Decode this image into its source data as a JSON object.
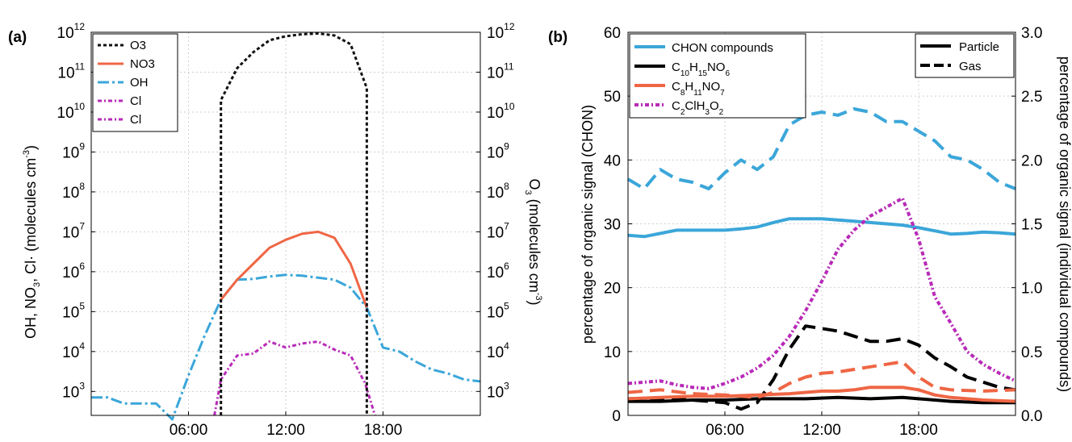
{
  "chart_data": [
    {
      "panel_label": "(a)",
      "type": "line",
      "yscale": "log",
      "ylim_exponents": [
        2.4,
        12
      ],
      "xlim_hours": [
        0,
        24
      ],
      "xticks": [
        "06:00",
        "12:00",
        "18:00"
      ],
      "ytick_exponents": [
        3,
        4,
        5,
        6,
        7,
        8,
        9,
        10,
        11,
        12
      ],
      "ylabel_left": {
        "text": "OH, NO",
        "sub": "3",
        "tail": ", Cl· (molecules cm",
        "sup": "-3",
        "close": ")"
      },
      "ylabel_right": {
        "text": "O",
        "sub": "3",
        "tail": " (molecules cm",
        "sup": "-3",
        "close": ")"
      },
      "grid": true,
      "legend_position": "top-left",
      "legend": [
        "O3",
        "NO3",
        "OH",
        "Cl",
        "Cl"
      ],
      "series": [
        {
          "name": "O3",
          "color": "#111111",
          "dash": "4 3",
          "x": [
            8,
            8,
            9,
            10,
            11,
            12,
            13,
            14,
            15,
            16,
            17,
            17
          ],
          "y_exponent": [
            2.4,
            10.3,
            11.1,
            11.5,
            11.8,
            11.9,
            11.95,
            11.97,
            11.92,
            11.7,
            10.6,
            2.4
          ]
        },
        {
          "name": "NO3",
          "color": "#ef6645",
          "dash": "",
          "x": [
            8,
            9,
            10,
            11,
            12,
            13,
            14,
            15,
            16,
            17
          ],
          "y_exponent": [
            5.3,
            5.8,
            6.2,
            6.6,
            6.8,
            6.95,
            7.0,
            6.85,
            6.2,
            5.1
          ]
        },
        {
          "name": "OH",
          "color": "#3ba6d9",
          "dash": "14 4 3 4",
          "x": [
            0,
            1,
            2,
            3,
            4,
            5,
            6,
            7,
            8,
            9,
            10,
            11,
            12,
            13,
            14,
            15,
            16,
            17,
            18,
            19,
            20,
            21,
            22,
            23,
            24
          ],
          "y_exponent": [
            2.85,
            2.85,
            2.7,
            2.7,
            2.7,
            2.3,
            3.4,
            4.4,
            5.3,
            5.8,
            5.82,
            5.88,
            5.92,
            5.9,
            5.85,
            5.8,
            5.6,
            5.1,
            4.1,
            4.0,
            3.75,
            3.55,
            3.45,
            3.3,
            3.25
          ]
        },
        {
          "name": "Cl",
          "color": "#b82ab8",
          "dash": "5 3 2 3",
          "x": [
            7.6,
            8,
            9,
            10,
            11,
            12,
            13,
            14,
            15,
            16,
            16.9,
            17.5
          ],
          "y_exponent": [
            2.4,
            3.3,
            3.9,
            3.95,
            4.25,
            4.1,
            4.2,
            4.25,
            4.05,
            3.9,
            3.2,
            2.4
          ]
        }
      ]
    },
    {
      "panel_label": "(b)",
      "type": "line",
      "xlim_hours": [
        0,
        24
      ],
      "xticks": [
        "06:00",
        "12:00",
        "18:00"
      ],
      "ylim_left": [
        0,
        60
      ],
      "yticks_left": [
        "0",
        "10",
        "20",
        "30",
        "40",
        "50",
        "60"
      ],
      "ylim_right": [
        0,
        3
      ],
      "yticks_right": [
        "0.0",
        "0.5",
        "1.0",
        "1.5",
        "2.0",
        "2.5",
        "3.0"
      ],
      "ylabel_left": "percentage of organic signal (CHON)",
      "ylabel_right": "percentage of organic signal (individual compounds)",
      "grid": true,
      "legend_compounds": [
        {
          "label": "CHON compounds",
          "color": "#3ba6d9",
          "parts": [
            {
              "t": "CHON compounds"
            }
          ]
        },
        {
          "label": "C10H15NO6",
          "color": "#000000",
          "parts": [
            {
              "t": "C"
            },
            {
              "t": "10",
              "sub": true
            },
            {
              "t": "H"
            },
            {
              "t": "15",
              "sub": true
            },
            {
              "t": "NO"
            },
            {
              "t": "6",
              "sub": true
            }
          ]
        },
        {
          "label": "C8H11NO7",
          "color": "#ef6645",
          "parts": [
            {
              "t": "C"
            },
            {
              "t": "8",
              "sub": true
            },
            {
              "t": "H"
            },
            {
              "t": "11",
              "sub": true
            },
            {
              "t": "NO"
            },
            {
              "t": "7",
              "sub": true
            }
          ]
        },
        {
          "label": "C2ClH3O2",
          "color": "#b82ab8",
          "parts": [
            {
              "t": "C"
            },
            {
              "t": "2",
              "sub": true
            },
            {
              "t": "ClH"
            },
            {
              "t": "3",
              "sub": true
            },
            {
              "t": "O"
            },
            {
              "t": "2",
              "sub": true
            }
          ]
        }
      ],
      "legend_phase": [
        "Particle",
        "Gas"
      ],
      "series": [
        {
          "name": "CHON compounds",
          "phase": "Particle",
          "axis": "left",
          "color": "#3ba6d9",
          "dash": "",
          "x": [
            0,
            1,
            2,
            3,
            4,
            5,
            6,
            7,
            8,
            9,
            10,
            11,
            12,
            13,
            14,
            15,
            16,
            17,
            18,
            19,
            20,
            21,
            22,
            23,
            24
          ],
          "y": [
            28.2,
            28,
            28.5,
            29,
            29,
            29,
            29,
            29.2,
            29.5,
            30.2,
            30.8,
            30.8,
            30.8,
            30.6,
            30.4,
            30.2,
            30,
            29.8,
            29.4,
            28.9,
            28.4,
            28.5,
            28.7,
            28.6,
            28.4
          ]
        },
        {
          "name": "CHON compounds",
          "phase": "Gas",
          "axis": "left",
          "color": "#3ba6d9",
          "dash": "18 9",
          "x": [
            0,
            1,
            2,
            3,
            4,
            5,
            6,
            7,
            8,
            9,
            10,
            11,
            12,
            13,
            14,
            15,
            16,
            17,
            18,
            19,
            20,
            21,
            22,
            23,
            24
          ],
          "y": [
            37,
            35.5,
            38.5,
            37,
            36.5,
            35.5,
            38,
            40,
            38.5,
            40.5,
            45.5,
            47,
            47.5,
            47,
            48,
            47.5,
            46,
            46,
            44.5,
            43,
            40.5,
            40,
            38.5,
            36.5,
            35.5
          ]
        },
        {
          "name": "C10H15NO6",
          "phase": "Particle",
          "axis": "right",
          "color": "#000000",
          "dash": "",
          "x": [
            0,
            2,
            4,
            6,
            8,
            10,
            11,
            13,
            15,
            17,
            18,
            20,
            22,
            24
          ],
          "y": [
            0.11,
            0.11,
            0.12,
            0.12,
            0.13,
            0.13,
            0.13,
            0.14,
            0.13,
            0.14,
            0.13,
            0.11,
            0.1,
            0.1
          ]
        },
        {
          "name": "C10H15NO6",
          "phase": "Gas",
          "axis": "right",
          "color": "#000000",
          "dash": "18 9",
          "x": [
            0,
            2,
            4,
            6,
            7,
            8,
            9,
            10,
            11,
            12,
            13,
            14,
            15,
            16,
            17,
            18,
            19,
            20,
            21,
            22,
            23,
            24
          ],
          "y": [
            0.13,
            0.13,
            0.12,
            0.1,
            0.05,
            0.1,
            0.28,
            0.52,
            0.7,
            0.68,
            0.66,
            0.62,
            0.58,
            0.58,
            0.6,
            0.55,
            0.45,
            0.38,
            0.3,
            0.26,
            0.22,
            0.2
          ]
        },
        {
          "name": "C8H11NO7",
          "phase": "Particle",
          "axis": "right",
          "color": "#ef6645",
          "dash": "",
          "x": [
            0,
            2,
            4,
            6,
            8,
            10,
            11,
            12,
            13,
            14,
            15,
            16,
            17,
            18,
            19,
            20,
            22,
            24
          ],
          "y": [
            0.13,
            0.14,
            0.15,
            0.15,
            0.16,
            0.17,
            0.18,
            0.19,
            0.19,
            0.2,
            0.22,
            0.22,
            0.22,
            0.2,
            0.16,
            0.14,
            0.12,
            0.11
          ]
        },
        {
          "name": "C8H11NO7",
          "phase": "Gas",
          "axis": "right",
          "color": "#ef6645",
          "dash": "18 9",
          "x": [
            0,
            2,
            4,
            6,
            7,
            8,
            9,
            10,
            11,
            12,
            13,
            14,
            15,
            16,
            17,
            18,
            19,
            20,
            22,
            24
          ],
          "y": [
            0.18,
            0.2,
            0.17,
            0.16,
            0.15,
            0.14,
            0.18,
            0.25,
            0.3,
            0.33,
            0.34,
            0.36,
            0.38,
            0.4,
            0.42,
            0.3,
            0.22,
            0.2,
            0.19,
            0.2
          ]
        },
        {
          "name": "C2ClH3O2",
          "phase": "Gas",
          "axis": "right",
          "color": "#b82ab8",
          "dash": "5 3 2 3",
          "x": [
            0,
            1,
            2,
            3,
            4,
            5,
            6,
            7,
            8,
            9,
            10,
            11,
            12,
            13,
            14,
            15,
            16,
            17,
            18,
            19,
            20,
            21,
            22,
            23,
            24
          ],
          "y": [
            0.25,
            0.26,
            0.27,
            0.24,
            0.22,
            0.21,
            0.25,
            0.3,
            0.37,
            0.47,
            0.62,
            0.82,
            1.05,
            1.3,
            1.45,
            1.56,
            1.63,
            1.7,
            1.38,
            0.93,
            0.72,
            0.5,
            0.4,
            0.33,
            0.27
          ]
        }
      ]
    }
  ]
}
